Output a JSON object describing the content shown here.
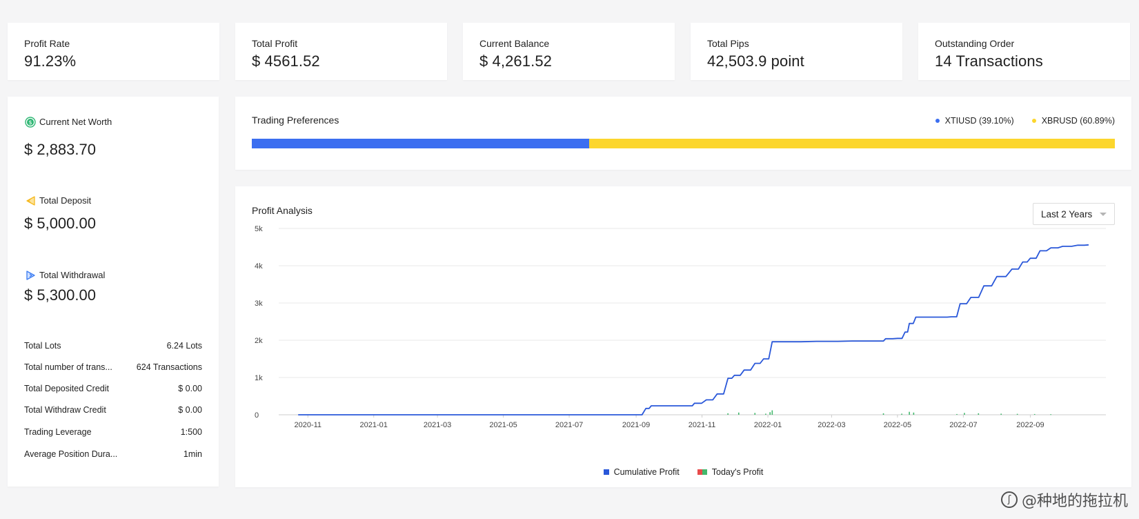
{
  "stats": [
    {
      "label": "Profit Rate",
      "value": "91.23%"
    },
    {
      "label": "Total Profit",
      "value": "$ 4561.52"
    },
    {
      "label": "Current Balance",
      "value": "$ 4,261.52"
    },
    {
      "label": "Total Pips",
      "value": "42,503.9 point"
    },
    {
      "label": "Outstanding Order",
      "value": "14 Transactions"
    }
  ],
  "left_panel": {
    "net_worth": {
      "label": "Current Net Worth",
      "value": "$ 2,883.70",
      "icon": "dollar-coin-icon",
      "color": "#2fb774"
    },
    "deposit": {
      "label": "Total Deposit",
      "value": "$ 5,000.00",
      "icon": "deposit-arrow-icon",
      "color": "#f5b921"
    },
    "withdrawal": {
      "label": "Total Withdrawal",
      "value": "$ 5,300.00",
      "icon": "withdrawal-arrow-icon",
      "color": "#3a7bf2"
    },
    "rows": [
      {
        "key": "Total Lots",
        "value": "6.24 Lots"
      },
      {
        "key": "Total number of trans...",
        "value": "624 Transactions"
      },
      {
        "key": "Total Deposited Credit",
        "value": "$ 0.00"
      },
      {
        "key": "Total Withdraw Credit",
        "value": "$ 0.00"
      },
      {
        "key": "Trading Leverage",
        "value": "1:500"
      },
      {
        "key": "Average Position Dura...",
        "value": "1min"
      }
    ]
  },
  "preferences": {
    "title": "Trading Preferences",
    "items": [
      {
        "label": "XTIUSD (39.10%)",
        "fraction": 0.391,
        "color": "#3b6ef0"
      },
      {
        "label": "XBRUSD (60.89%)",
        "fraction": 0.6089,
        "color": "#fcd62d"
      }
    ]
  },
  "profit": {
    "title": "Profit Analysis",
    "range_label": "Last 2 Years",
    "legend": {
      "cumulative": "Cumulative Profit",
      "today": "Today's Profit"
    },
    "colors": {
      "line": "#2957d9",
      "positive": "#42b86c",
      "negative": "#e84a4a",
      "grid": "#e8e8e8",
      "axis": "#cccccc"
    }
  },
  "chart_data": {
    "type": "line",
    "title": "Profit Analysis",
    "xlabel": "",
    "ylabel": "",
    "ylim": [
      0,
      5000
    ],
    "y_ticks": [
      "0",
      "1k",
      "2k",
      "3k",
      "4k",
      "5k"
    ],
    "x_ticks": [
      "2020-11",
      "2021-01",
      "2021-03",
      "2021-05",
      "2021-07",
      "2021-09",
      "2021-11",
      "2022-01",
      "2022-03",
      "2022-05",
      "2022-07",
      "2022-09"
    ],
    "grid": true,
    "legend_position": "bottom",
    "series": [
      {
        "name": "Cumulative Profit",
        "x": [
          "2020-10-23",
          "2021-09-01",
          "2021-09-10",
          "2021-09-15",
          "2021-10-20",
          "2021-10-25",
          "2021-11-05",
          "2021-11-15",
          "2021-11-25",
          "2021-12-01",
          "2021-12-10",
          "2021-12-20",
          "2021-12-28",
          "2022-01-05",
          "2022-01-10",
          "2022-02-15",
          "2022-03-20",
          "2022-04-15",
          "2022-04-20",
          "2022-05-01",
          "2022-05-08",
          "2022-05-12",
          "2022-05-18",
          "2022-06-10",
          "2022-06-20",
          "2022-06-28",
          "2022-07-08",
          "2022-07-20",
          "2022-08-01",
          "2022-08-15",
          "2022-08-25",
          "2022-09-01",
          "2022-09-10",
          "2022-09-20",
          "2022-10-01",
          "2022-10-15",
          "2022-10-25"
        ],
        "y": [
          0,
          0,
          170,
          240,
          240,
          310,
          400,
          560,
          980,
          1060,
          1200,
          1380,
          1500,
          1960,
          1960,
          1970,
          1980,
          1980,
          2040,
          2050,
          2220,
          2450,
          2620,
          2620,
          2630,
          2980,
          3150,
          3460,
          3710,
          3910,
          4100,
          4200,
          4400,
          4480,
          4520,
          4550,
          4560
        ]
      },
      {
        "name": "Today's Profit",
        "x": [
          "2021-11-25",
          "2021-12-05",
          "2021-12-20",
          "2021-12-30",
          "2022-01-03",
          "2022-01-05",
          "2022-04-18",
          "2022-05-05",
          "2022-05-12",
          "2022-05-16",
          "2022-06-25",
          "2022-07-02",
          "2022-07-15",
          "2022-08-05",
          "2022-08-20",
          "2022-09-05",
          "2022-09-20"
        ],
        "y": [
          40,
          60,
          50,
          30,
          70,
          120,
          40,
          30,
          80,
          60,
          20,
          50,
          40,
          30,
          25,
          20,
          15
        ]
      }
    ]
  },
  "watermark": "@种地的拖拉机"
}
